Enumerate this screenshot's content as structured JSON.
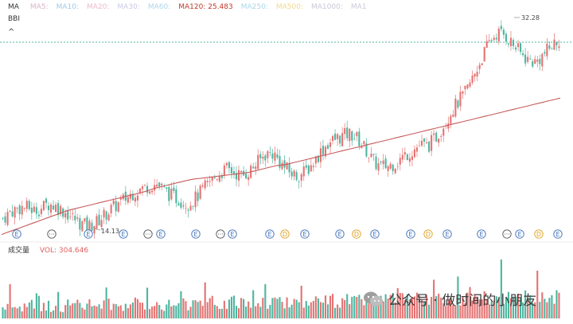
{
  "legend": {
    "title": "MA",
    "items": [
      {
        "label": "MA5:",
        "color": "#d9b3c6"
      },
      {
        "label": "MA10:",
        "color": "#9ec9e8"
      },
      {
        "label": "MA20:",
        "color": "#f0b8c8"
      },
      {
        "label": "MA30:",
        "color": "#c9c9e8"
      },
      {
        "label": "MA60:",
        "color": "#b0d6e8"
      },
      {
        "label": "MA120: 25.483",
        "color": "#c0392b"
      },
      {
        "label": "MA250:",
        "color": "#a8d8e8"
      },
      {
        "label": "MA500:",
        "color": "#f0d890"
      },
      {
        "label": "MA1000:",
        "color": "#c8c8d8"
      },
      {
        "label": "MA1",
        "color": "#c8c8d8"
      }
    ]
  },
  "bbi_label": "BBI",
  "collapse_icon": "^",
  "price_high_label": "32.28",
  "price_low_label": "14.13",
  "volume": {
    "title": "成交量",
    "value_label": "VOL: 304.646",
    "value_color": "#e06060"
  },
  "watermark": {
    "text": "公众号 · 做时间的小朋友"
  },
  "colors": {
    "up": "#e57373",
    "down": "#4db6a0",
    "ma120": "#c65a5a",
    "event_e": "#3f6fb5",
    "event_d": "#e0a020",
    "event_more": "#555555"
  },
  "events": [
    {
      "type": "E"
    },
    {
      "type": "more"
    },
    {
      "type": "E"
    },
    {
      "type": "E"
    },
    {
      "type": "more"
    },
    {
      "type": "E"
    },
    {
      "type": "E"
    },
    {
      "type": "more"
    },
    {
      "type": "E"
    },
    {
      "type": "E"
    },
    {
      "type": "D"
    },
    {
      "type": "E"
    },
    {
      "type": "E"
    },
    {
      "type": "D"
    },
    {
      "type": "E"
    },
    {
      "type": "E"
    },
    {
      "type": "D"
    },
    {
      "type": "E"
    },
    {
      "type": "E"
    },
    {
      "type": "more"
    },
    {
      "type": "E"
    },
    {
      "type": "D"
    },
    {
      "type": "E"
    }
  ],
  "chart_data": {
    "type": "candlestick",
    "title": "",
    "price_path": [
      15.0,
      15.6,
      15.9,
      16.0,
      15.7,
      15.9,
      16.3,
      16.0,
      15.6,
      15.1,
      14.6,
      14.3,
      14.6,
      15.2,
      15.8,
      16.3,
      16.8,
      17.3,
      17.6,
      17.9,
      18.0,
      17.4,
      16.9,
      16.6,
      16.3,
      16.8,
      17.6,
      18.3,
      18.9,
      19.3,
      19.0,
      18.7,
      19.2,
      19.9,
      20.6,
      20.7,
      19.8,
      19.1,
      18.7,
      19.0,
      19.7,
      20.7,
      21.5,
      21.9,
      22.2,
      22.4,
      21.9,
      21.0,
      19.9,
      19.5,
      19.6,
      19.9,
      20.5,
      20.9,
      21.4,
      21.3,
      22.0,
      23.1,
      24.3,
      25.2,
      26.1,
      27.5,
      29.0,
      30.4,
      31.2,
      31.0,
      30.2,
      29.4,
      28.8,
      28.6,
      29.3,
      30.0,
      30.6
    ],
    "ma120_path": [
      13.6,
      13.9,
      14.2,
      14.5,
      14.8,
      15.1,
      15.4,
      15.7,
      15.9,
      16.1,
      16.3,
      16.5,
      16.7,
      16.9,
      17.1,
      17.3,
      17.6,
      17.8,
      18.0,
      18.2,
      18.4,
      18.5,
      18.6,
      18.7,
      18.8,
      18.9,
      19.0,
      19.2,
      19.4,
      19.6,
      19.7,
      19.9,
      20.1,
      20.3,
      20.5,
      20.7,
      20.9,
      21.1,
      21.3,
      21.5,
      21.7,
      21.9,
      22.1,
      22.3,
      22.5,
      22.7,
      22.9,
      23.1,
      23.3,
      23.5,
      23.7,
      23.9,
      24.1,
      24.3,
      24.5,
      24.7,
      24.9,
      25.1,
      25.3,
      25.5
    ],
    "high": 32.28,
    "low": 14.13,
    "ylim": [
      13.5,
      32.8
    ]
  }
}
